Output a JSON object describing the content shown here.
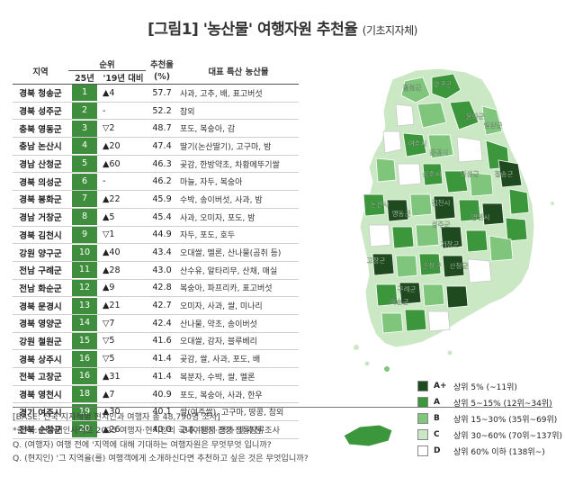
{
  "title": "[그림1] '농산물' 여행자원 추천율",
  "subtitle": "(기초지자체)",
  "headers": {
    "region": "지역",
    "rank_group": "순위",
    "rank_25": "25년",
    "rank_change": "'19년 대비",
    "rate": "추천율",
    "rate_unit": "(%)",
    "products": "대표 특산 농산물"
  },
  "rows": [
    {
      "region": "경북 청송군",
      "rank": "1",
      "change": "▲4",
      "rate": "57.7",
      "products": "사과, 고추, 배, 표고버섯"
    },
    {
      "region": "경북 성주군",
      "rank": "2",
      "change": "-",
      "rate": "52.2",
      "products": "참외"
    },
    {
      "region": "충북 영동군",
      "rank": "3",
      "change": "▽2",
      "rate": "48.7",
      "products": "포도, 복숭아, 감"
    },
    {
      "region": "충남 논산시",
      "rank": "4",
      "change": "▲20",
      "rate": "47.4",
      "products": "딸기(논산딸기), 고구마, 밤"
    },
    {
      "region": "경남 산청군",
      "rank": "5",
      "change": "▲60",
      "rate": "46.3",
      "products": "곶감, 한방약초, 차황메뚜기쌀"
    },
    {
      "region": "경북 의성군",
      "rank": "6",
      "change": "-",
      "rate": "46.2",
      "products": "마늘, 자두, 복숭아"
    },
    {
      "region": "경북 봉화군",
      "rank": "7",
      "change": "▲22",
      "rate": "45.9",
      "products": "수박, 송이버섯, 사과, 밤"
    },
    {
      "region": "경남 거창군",
      "rank": "8",
      "change": "▲5",
      "rate": "45.4",
      "products": "사과, 오미자, 포도, 밤"
    },
    {
      "region": "경북 김천시",
      "rank": "9",
      "change": "▽1",
      "rate": "44.9",
      "products": "자두, 포도, 호두"
    },
    {
      "region": "강원 양구군",
      "rank": "10",
      "change": "▲40",
      "rate": "43.4",
      "products": "오대쌀, 멜론, 산나물(곰취 등)"
    },
    {
      "region": "전남 구례군",
      "rank": "11",
      "change": "▲28",
      "rate": "43.0",
      "products": "산수유, 알타리무, 산채, 매실"
    },
    {
      "region": "전남 화순군",
      "rank": "12",
      "change": "▲9",
      "rate": "42.8",
      "products": "복숭아, 파프리카, 표고버섯"
    },
    {
      "region": "경북 문경시",
      "rank": "13",
      "change": "▲21",
      "rate": "42.7",
      "products": "오미자, 사과, 쌀, 미나리"
    },
    {
      "region": "경북 영양군",
      "rank": "14",
      "change": "▽7",
      "rate": "42.4",
      "products": "산나물, 약초, 송이버섯"
    },
    {
      "region": "강원 철원군",
      "rank": "15",
      "change": "▽5",
      "rate": "41.6",
      "products": "오대쌀, 감자, 블루베리"
    },
    {
      "region": "경북 상주시",
      "rank": "16",
      "change": "▽5",
      "rate": "41.4",
      "products": "곶감, 쌀, 사과, 포도, 배"
    },
    {
      "region": "전북 고창군",
      "rank": "16",
      "change": "▲31",
      "rate": "41.4",
      "products": "복분자, 수박, 쌀, 멜론"
    },
    {
      "region": "경북 영천시",
      "rank": "18",
      "change": "▲7",
      "rate": "40.9",
      "products": "포도, 복숭아, 사과, 한우"
    },
    {
      "region": "경기 여주시",
      "rank": "19",
      "change": "▲30",
      "rate": "40.1",
      "products": "쌀(여주쌀), 고구마, 땅콩, 참외"
    },
    {
      "region": "전북 순창군",
      "rank": "20",
      "change": "▲26",
      "rate": "40.0",
      "products": "고추, 된장·간장·전통장류"
    }
  ],
  "notes": [
    "[BASE: 전국 지자체별 현지인과 여행자 총 48,790명 조사]",
    "*출처 : 컨슈머인사이트 2025 여행자·현지인의 국내여행지 평가 및 추천 조사",
    "Q. (여행자) 여행 전에 '지역에 대해 기대하는 여행자원은 무엇무엇 입니까?",
    "Q. (현지인) '그 지역을(를) 여행객에게 소개하신다면 추천하고 싶은 것은 무엇입니까?"
  ],
  "legend": [
    {
      "code": "A+",
      "label": "상위 5% (~11위)",
      "color": "#1f4a1f"
    },
    {
      "code": "A",
      "label": "상위 5~15% (12위~34위)",
      "color": "#3c973c"
    },
    {
      "code": "B",
      "label": "상위 15~30% (35위~69위)",
      "color": "#7fc67c"
    },
    {
      "code": "C",
      "label": "상위 30~60% (70위~137위)",
      "color": "#cbe8c4"
    },
    {
      "code": "D",
      "label": "상위 60% 이하 (138위~)",
      "color": "#ffffff"
    }
  ],
  "map_labels": [
    {
      "name": "철원군"
    },
    {
      "name": "양구군"
    },
    {
      "name": "여주시"
    },
    {
      "name": "봉화군"
    },
    {
      "name": "영양군"
    },
    {
      "name": "문경시"
    },
    {
      "name": "상주시"
    },
    {
      "name": "의성군"
    },
    {
      "name": "청송군"
    },
    {
      "name": "논산시"
    },
    {
      "name": "영동군"
    },
    {
      "name": "김천시"
    },
    {
      "name": "성주군"
    },
    {
      "name": "영천시"
    },
    {
      "name": "거창군"
    },
    {
      "name": "고창군"
    },
    {
      "name": "순창군"
    },
    {
      "name": "산청군"
    },
    {
      "name": "구례군"
    },
    {
      "name": "화순군"
    }
  ]
}
